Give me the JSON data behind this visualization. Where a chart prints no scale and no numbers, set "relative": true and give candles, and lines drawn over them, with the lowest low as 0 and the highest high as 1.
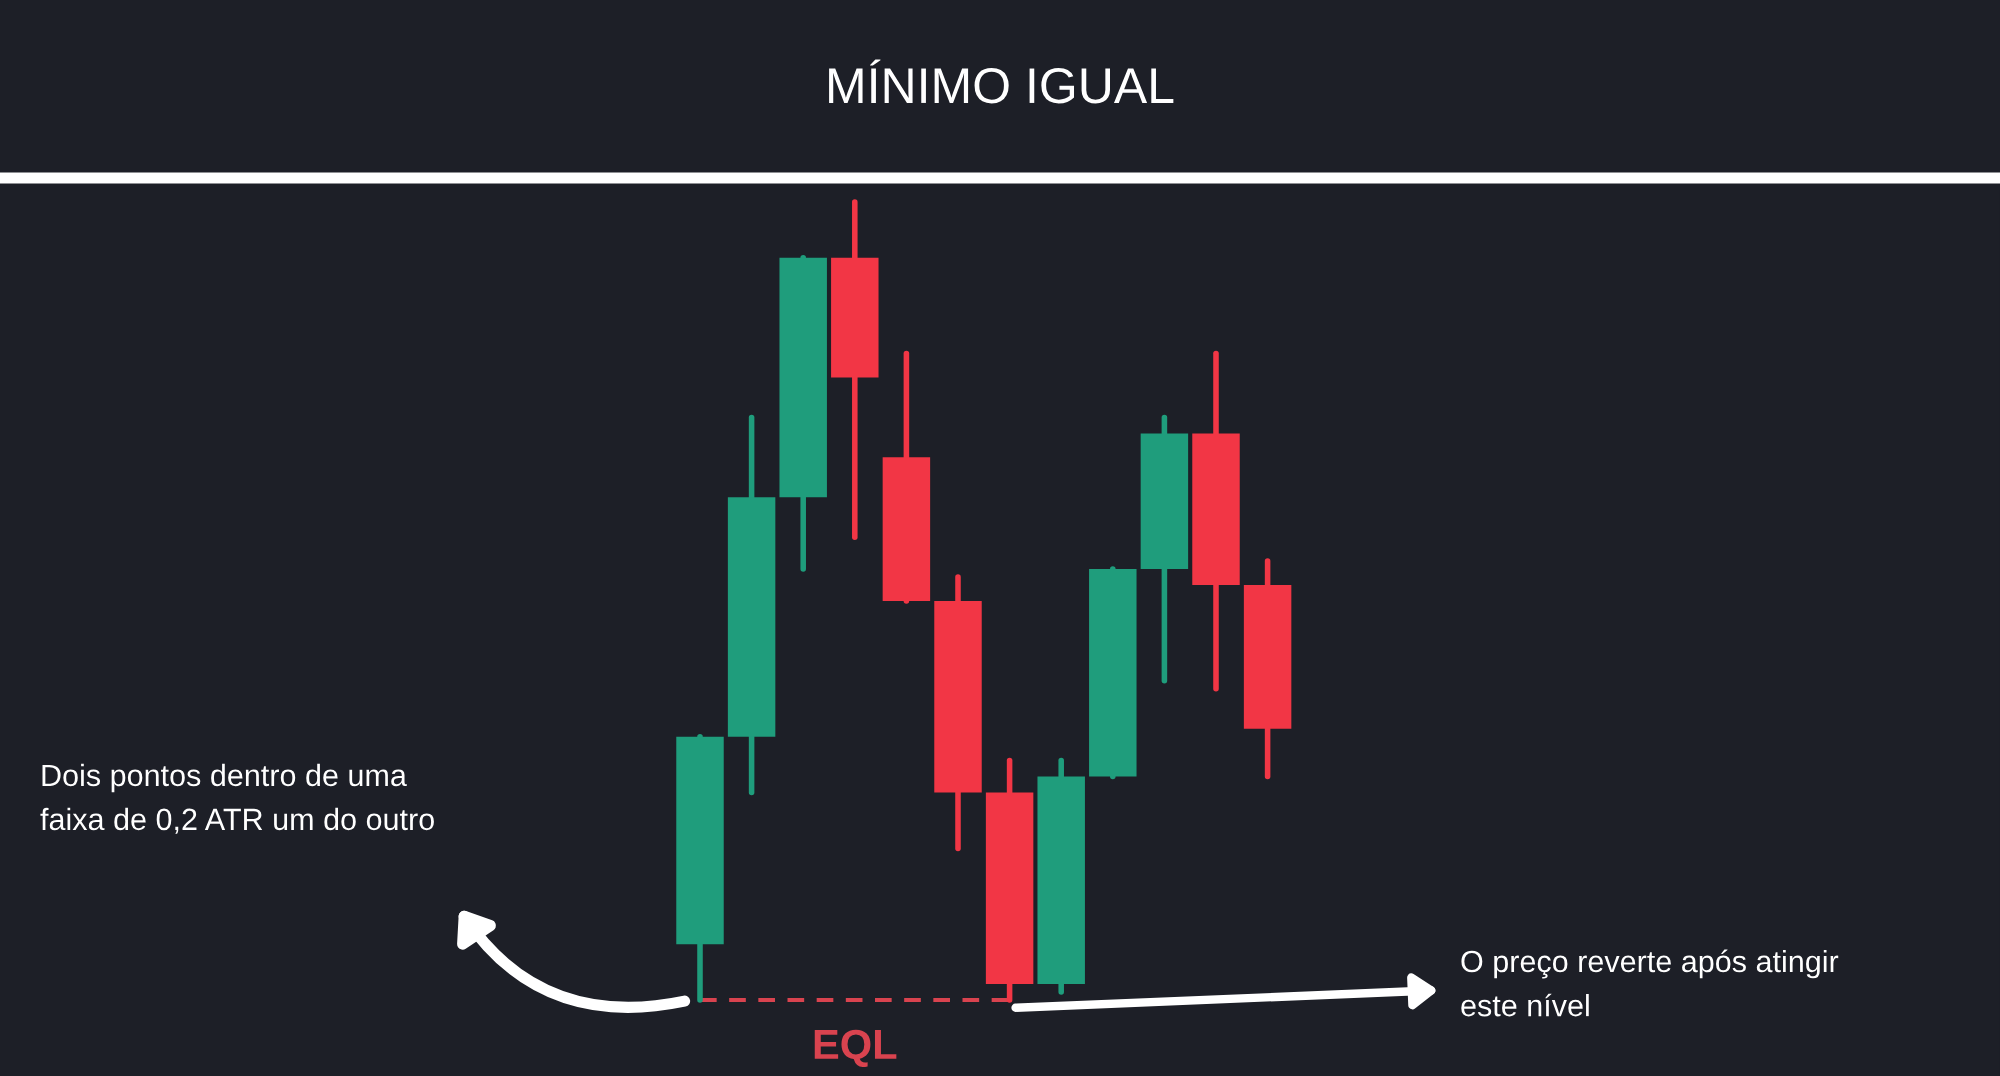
{
  "chart_data": {
    "type": "candlestick",
    "title": "MÍNIMO IGUAL",
    "relative": true,
    "categories": [
      null,
      null,
      null,
      null,
      null,
      null,
      null,
      null,
      null,
      null,
      null,
      null
    ],
    "ohlc": [
      [
        0.07,
        0.33,
        0,
        0.33
      ],
      [
        0.33,
        0.73,
        0.26,
        0.63
      ],
      [
        0.63,
        0.93,
        0.54,
        0.93
      ],
      [
        0.93,
        1,
        0.58,
        0.78
      ],
      [
        0.68,
        0.81,
        0.5,
        0.5
      ],
      [
        0.5,
        0.53,
        0.19,
        0.26
      ],
      [
        0.26,
        0.3,
        0,
        0.02
      ],
      [
        0.02,
        0.3,
        0.01,
        0.28
      ],
      [
        0.28,
        0.54,
        0.28,
        0.54
      ],
      [
        0.54,
        0.73,
        0.4,
        0.71
      ],
      [
        0.71,
        0.81,
        0.39,
        0.52
      ],
      [
        0.52,
        0.55,
        0.28,
        0.34
      ]
    ],
    "colors": [
      "#1f9d7c",
      "#1f9d7c",
      "#1f9d7c",
      "#f23645",
      "#f23645",
      "#f23645",
      "#f23645",
      "#1f9d7c",
      "#1f9d7c",
      "#1f9d7c",
      "#f23645",
      "#f23645"
    ],
    "ref_lines": [
      {
        "axis": "y",
        "value": 0,
        "label": "EQL",
        "color": "#d9434f",
        "line_style": "dashed"
      }
    ],
    "annotations": [
      "Dois pontos dentro de uma\nfaixa de 0,2 ATR um do outro",
      "O preço reverte após atingir\neste nível"
    ]
  }
}
